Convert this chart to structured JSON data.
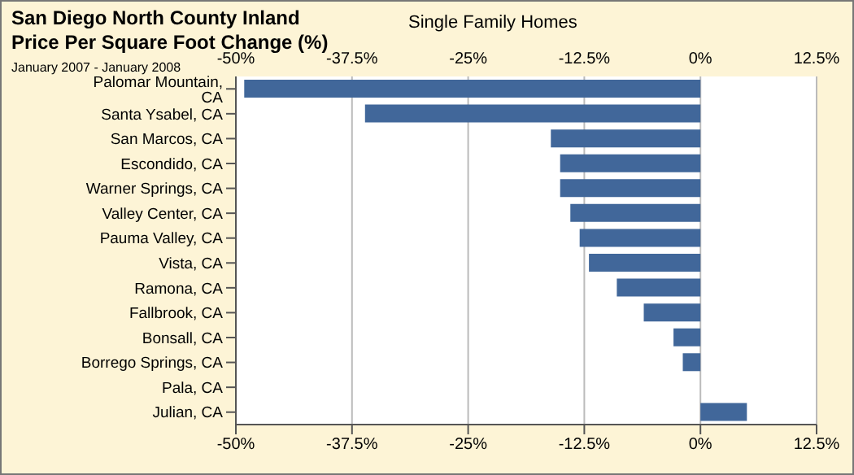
{
  "chart_data": {
    "type": "bar",
    "orientation": "horizontal",
    "title": "San Diego North County Inland\nPrice Per Square Foot Change (%)",
    "subtitle": "Single Family Homes",
    "annotations": [
      "January 2007 - January 2008"
    ],
    "categories": [
      "Palomar Mountain, CA",
      "Santa Ysabel, CA",
      "San Marcos, CA",
      "Escondido, CA",
      "Warner Springs, CA",
      "Valley Center, CA",
      "Pauma Valley, CA",
      "Vista, CA",
      "Ramona, CA",
      "Fallbrook, CA",
      "Bonsall, CA",
      "Borrego Springs, CA",
      "Pala, CA",
      "Julian, CA"
    ],
    "values": [
      -49.1,
      -36.1,
      -16.1,
      -15.1,
      -15.1,
      -14.0,
      -13.0,
      -12.0,
      -9.0,
      -6.1,
      -2.9,
      -1.9,
      0,
      5.0
    ],
    "color": "#41679a",
    "xlim": [
      -50,
      12.5
    ],
    "xticks": [
      {
        "value": -50,
        "label": "-50%"
      },
      {
        "value": -37.5,
        "label": "-37.5%"
      },
      {
        "value": -25,
        "label": "-25%"
      },
      {
        "value": -12.5,
        "label": "-12.5%"
      },
      {
        "value": 0,
        "label": "0%"
      },
      {
        "value": 12.5,
        "label": "12.5%"
      }
    ],
    "x2lim": [
      -50,
      12.5
    ],
    "x2ticks": [
      {
        "value": -50,
        "label": "-50%"
      },
      {
        "value": -37.5,
        "label": "-37.5%"
      },
      {
        "value": -25,
        "label": "-25%"
      },
      {
        "value": -12.5,
        "label": "-12.5%"
      },
      {
        "value": 0,
        "label": "0%"
      },
      {
        "value": 12.5,
        "label": "12.5%"
      }
    ],
    "grid": "x"
  }
}
